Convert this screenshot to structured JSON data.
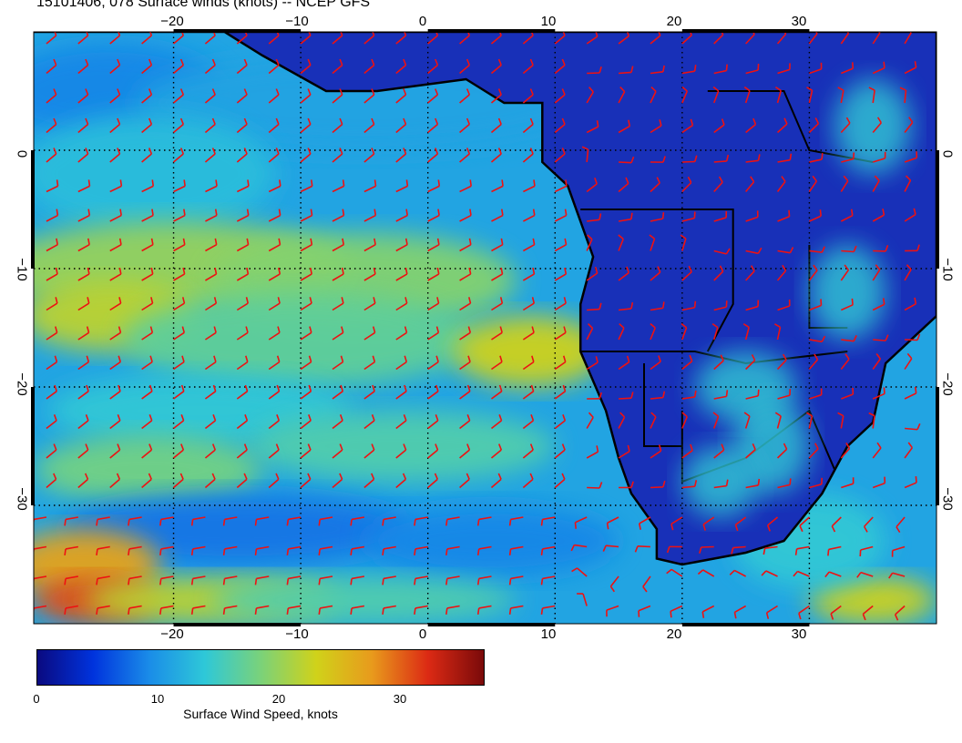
{
  "title": "15101406, 078 Surface winds (knots) -- NCEP GFS",
  "map": {
    "lon_range": [
      -31,
      40
    ],
    "lat_range": [
      -40,
      10
    ],
    "lon_ticks": [
      -20,
      -10,
      0,
      10,
      20,
      30
    ],
    "lat_ticks": [
      0,
      -10,
      -20,
      -30
    ],
    "lon_tick_labels": [
      "−20",
      "−10",
      "0",
      "10",
      "20",
      "30"
    ],
    "lat_tick_labels": [
      "0",
      "−10",
      "−20",
      "−30"
    ],
    "grid": "dotted",
    "wind_barb_color": "#ee1111",
    "coastline_color": "#000000"
  },
  "colorbar": {
    "title": "Surface Wind Speed, knots",
    "min": 0,
    "max": 37,
    "tick_values": [
      0,
      10,
      20,
      30
    ],
    "tick_labels": [
      "0",
      "10",
      "20",
      "30"
    ],
    "colors": [
      "#0a0a80",
      "#0033dd",
      "#1a8ce8",
      "#2ec8d8",
      "#7ad27a",
      "#d0d21a",
      "#e89a1c",
      "#dc2a14",
      "#7a0a0a"
    ]
  }
}
